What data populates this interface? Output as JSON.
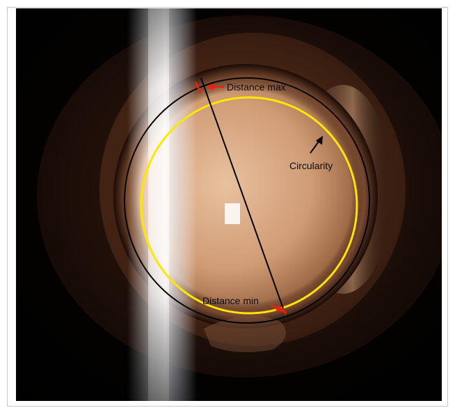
{
  "annotations": {
    "distance_max": "Distance max",
    "distance_min": "Distance min",
    "circularity": "Circularity"
  },
  "colors": {
    "outer_circle": "#000000",
    "fit_circle": "#ffe600",
    "distance_marker": "#ff1a0a",
    "diameter_line": "#000000"
  }
}
